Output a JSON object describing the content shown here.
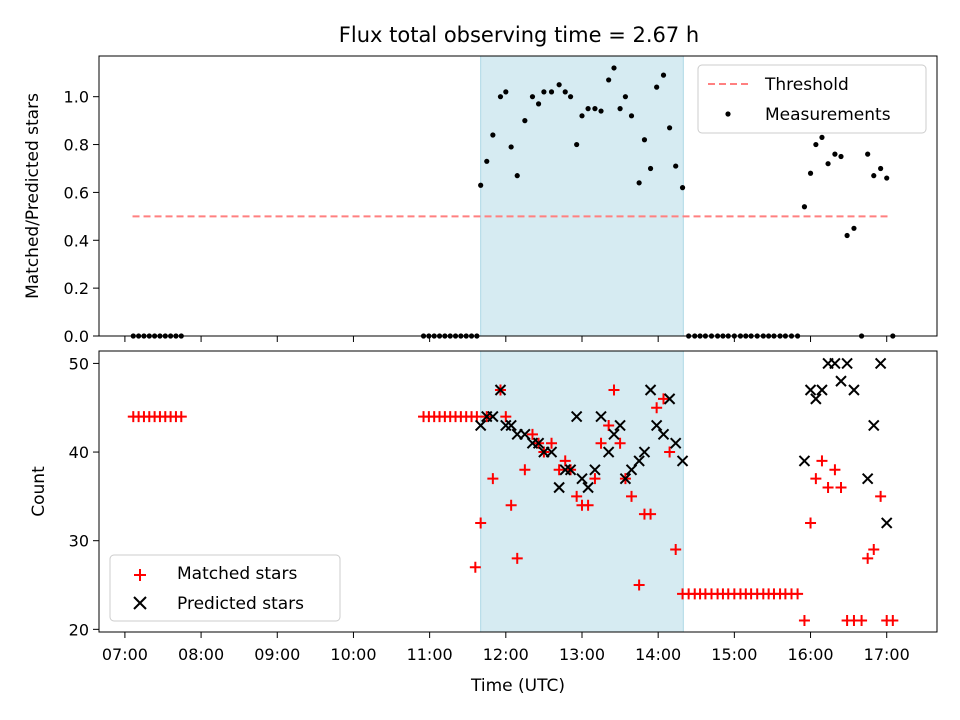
{
  "title": "Flux total observing time = 2.67 h",
  "colors": {
    "shade": "#add8e6",
    "threshold": "#ff8080",
    "matched": "#ff0000",
    "predicted": "#000000",
    "measurement": "#000000"
  },
  "chart_data": [
    {
      "type": "scatter",
      "panel": "top",
      "ylabel": "Matched/Predicted stars",
      "xlabel": "",
      "xlim": [
        6.66,
        17.66
      ],
      "ylim": [
        0.0,
        1.17
      ],
      "yticks": [
        0.0,
        0.2,
        0.4,
        0.6,
        0.8,
        1.0
      ],
      "ytick_labels": [
        "0.0",
        "0.2",
        "0.4",
        "0.6",
        "0.8",
        "1.0"
      ],
      "shaded_span": [
        11.67,
        14.33
      ],
      "legend": {
        "position": "top-right",
        "entries": [
          "Threshold",
          "Measurements"
        ]
      },
      "threshold": {
        "name": "Threshold",
        "y": 0.5,
        "x_range": [
          7.1,
          17.05
        ]
      },
      "series": [
        {
          "name": "Measurements",
          "points": [
            [
              7.11,
              0
            ],
            [
              7.18,
              0
            ],
            [
              7.25,
              0
            ],
            [
              7.32,
              0
            ],
            [
              7.39,
              0
            ],
            [
              7.46,
              0
            ],
            [
              7.53,
              0
            ],
            [
              7.6,
              0
            ],
            [
              7.67,
              0
            ],
            [
              7.74,
              0
            ],
            [
              10.92,
              0
            ],
            [
              10.99,
              0
            ],
            [
              11.06,
              0
            ],
            [
              11.13,
              0
            ],
            [
              11.2,
              0
            ],
            [
              11.27,
              0
            ],
            [
              11.34,
              0
            ],
            [
              11.41,
              0
            ],
            [
              11.48,
              0
            ],
            [
              11.55,
              0
            ],
            [
              11.62,
              0
            ],
            [
              11.67,
              0.63
            ],
            [
              11.75,
              0.73
            ],
            [
              11.83,
              0.84
            ],
            [
              11.93,
              1.0
            ],
            [
              12.0,
              1.02
            ],
            [
              12.07,
              0.79
            ],
            [
              12.15,
              0.67
            ],
            [
              12.25,
              0.9
            ],
            [
              12.35,
              1.0
            ],
            [
              12.43,
              0.97
            ],
            [
              12.5,
              1.02
            ],
            [
              12.6,
              1.02
            ],
            [
              12.7,
              1.05
            ],
            [
              12.78,
              1.02
            ],
            [
              12.85,
              1.0
            ],
            [
              12.93,
              0.8
            ],
            [
              13.0,
              0.92
            ],
            [
              13.08,
              0.95
            ],
            [
              13.17,
              0.95
            ],
            [
              13.25,
              0.94
            ],
            [
              13.35,
              1.07
            ],
            [
              13.42,
              1.12
            ],
            [
              13.5,
              0.95
            ],
            [
              13.57,
              1.0
            ],
            [
              13.65,
              0.92
            ],
            [
              13.75,
              0.64
            ],
            [
              13.82,
              0.82
            ],
            [
              13.9,
              0.7
            ],
            [
              13.98,
              1.04
            ],
            [
              14.07,
              1.09
            ],
            [
              14.15,
              0.87
            ],
            [
              14.23,
              0.71
            ],
            [
              14.32,
              0.62
            ],
            [
              14.4,
              0
            ],
            [
              14.48,
              0
            ],
            [
              14.55,
              0
            ],
            [
              14.62,
              0
            ],
            [
              14.7,
              0
            ],
            [
              14.78,
              0
            ],
            [
              14.85,
              0
            ],
            [
              14.92,
              0
            ],
            [
              15.0,
              0
            ],
            [
              15.08,
              0
            ],
            [
              15.15,
              0
            ],
            [
              15.22,
              0
            ],
            [
              15.3,
              0
            ],
            [
              15.38,
              0
            ],
            [
              15.45,
              0
            ],
            [
              15.52,
              0
            ],
            [
              15.6,
              0
            ],
            [
              15.67,
              0
            ],
            [
              15.75,
              0
            ],
            [
              15.83,
              0
            ],
            [
              15.92,
              0.54
            ],
            [
              16.0,
              0.68
            ],
            [
              16.07,
              0.8
            ],
            [
              16.15,
              0.83
            ],
            [
              16.23,
              0.72
            ],
            [
              16.32,
              0.76
            ],
            [
              16.4,
              0.75
            ],
            [
              16.48,
              0.42
            ],
            [
              16.57,
              0.45
            ],
            [
              16.67,
              0
            ],
            [
              16.75,
              0.76
            ],
            [
              16.83,
              0.67
            ],
            [
              16.92,
              0.7
            ],
            [
              17.0,
              0.66
            ],
            [
              17.08,
              0
            ]
          ]
        }
      ]
    },
    {
      "type": "scatter",
      "panel": "bottom",
      "ylabel": "Count",
      "xlabel": "Time (UTC)",
      "xlim": [
        6.66,
        17.66
      ],
      "ylim": [
        19.7,
        51.4
      ],
      "yticks": [
        20,
        30,
        40,
        50
      ],
      "ytick_labels": [
        "20",
        "30",
        "40",
        "50"
      ],
      "xticks": [
        7,
        8,
        9,
        10,
        11,
        12,
        13,
        14,
        15,
        16,
        17
      ],
      "xtick_labels": [
        "07:00",
        "08:00",
        "09:00",
        "10:00",
        "11:00",
        "12:00",
        "13:00",
        "14:00",
        "15:00",
        "16:00",
        "17:00"
      ],
      "shaded_span": [
        11.67,
        14.33
      ],
      "legend": {
        "position": "bottom-left",
        "entries": [
          "Matched stars",
          "Predicted stars"
        ]
      },
      "series": [
        {
          "name": "Matched stars",
          "marker": "plus",
          "points": [
            [
              7.11,
              44
            ],
            [
              7.18,
              44
            ],
            [
              7.25,
              44
            ],
            [
              7.32,
              44
            ],
            [
              7.39,
              44
            ],
            [
              7.46,
              44
            ],
            [
              7.53,
              44
            ],
            [
              7.6,
              44
            ],
            [
              7.67,
              44
            ],
            [
              7.74,
              44
            ],
            [
              10.92,
              44
            ],
            [
              10.99,
              44
            ],
            [
              11.06,
              44
            ],
            [
              11.13,
              44
            ],
            [
              11.2,
              44
            ],
            [
              11.27,
              44
            ],
            [
              11.34,
              44
            ],
            [
              11.41,
              44
            ],
            [
              11.48,
              44
            ],
            [
              11.55,
              44
            ],
            [
              11.62,
              44
            ],
            [
              11.6,
              27
            ],
            [
              11.67,
              32
            ],
            [
              11.75,
              44
            ],
            [
              11.83,
              37
            ],
            [
              11.93,
              47
            ],
            [
              12.0,
              44
            ],
            [
              12.07,
              34
            ],
            [
              12.15,
              28
            ],
            [
              12.25,
              38
            ],
            [
              12.35,
              42
            ],
            [
              12.43,
              41
            ],
            [
              12.5,
              40
            ],
            [
              12.6,
              41
            ],
            [
              12.7,
              38
            ],
            [
              12.78,
              39
            ],
            [
              12.85,
              38
            ],
            [
              12.93,
              35
            ],
            [
              13.0,
              34
            ],
            [
              13.08,
              34
            ],
            [
              13.17,
              37
            ],
            [
              13.25,
              41
            ],
            [
              13.35,
              43
            ],
            [
              13.42,
              47
            ],
            [
              13.5,
              41
            ],
            [
              13.57,
              37
            ],
            [
              13.65,
              35
            ],
            [
              13.75,
              25
            ],
            [
              13.82,
              33
            ],
            [
              13.9,
              33
            ],
            [
              13.98,
              45
            ],
            [
              14.07,
              46
            ],
            [
              14.15,
              40
            ],
            [
              14.23,
              29
            ],
            [
              14.32,
              24
            ],
            [
              14.4,
              24
            ],
            [
              14.48,
              24
            ],
            [
              14.55,
              24
            ],
            [
              14.62,
              24
            ],
            [
              14.7,
              24
            ],
            [
              14.78,
              24
            ],
            [
              14.85,
              24
            ],
            [
              14.92,
              24
            ],
            [
              15.0,
              24
            ],
            [
              15.08,
              24
            ],
            [
              15.15,
              24
            ],
            [
              15.22,
              24
            ],
            [
              15.3,
              24
            ],
            [
              15.38,
              24
            ],
            [
              15.45,
              24
            ],
            [
              15.52,
              24
            ],
            [
              15.6,
              24
            ],
            [
              15.67,
              24
            ],
            [
              15.75,
              24
            ],
            [
              15.83,
              24
            ],
            [
              15.92,
              21
            ],
            [
              16.0,
              32
            ],
            [
              16.07,
              37
            ],
            [
              16.15,
              39
            ],
            [
              16.23,
              36
            ],
            [
              16.32,
              38
            ],
            [
              16.4,
              36
            ],
            [
              16.48,
              21
            ],
            [
              16.57,
              21
            ],
            [
              16.67,
              21
            ],
            [
              16.75,
              28
            ],
            [
              16.83,
              29
            ],
            [
              16.92,
              35
            ],
            [
              17.0,
              21
            ],
            [
              17.08,
              21
            ]
          ]
        },
        {
          "name": "Predicted stars",
          "marker": "x",
          "points": [
            [
              11.67,
              43
            ],
            [
              11.75,
              44
            ],
            [
              11.83,
              44
            ],
            [
              11.93,
              47
            ],
            [
              12.0,
              43
            ],
            [
              12.07,
              43
            ],
            [
              12.15,
              42
            ],
            [
              12.25,
              42
            ],
            [
              12.35,
              41
            ],
            [
              12.43,
              41
            ],
            [
              12.5,
              40
            ],
            [
              12.6,
              40
            ],
            [
              12.7,
              36
            ],
            [
              12.78,
              38
            ],
            [
              12.85,
              38
            ],
            [
              12.93,
              44
            ],
            [
              13.0,
              37
            ],
            [
              13.08,
              36
            ],
            [
              13.17,
              38
            ],
            [
              13.25,
              44
            ],
            [
              13.35,
              40
            ],
            [
              13.42,
              42
            ],
            [
              13.5,
              43
            ],
            [
              13.57,
              37
            ],
            [
              13.65,
              38
            ],
            [
              13.75,
              39
            ],
            [
              13.82,
              40
            ],
            [
              13.9,
              47
            ],
            [
              13.98,
              43
            ],
            [
              14.07,
              42
            ],
            [
              14.15,
              46
            ],
            [
              14.23,
              41
            ],
            [
              14.32,
              39
            ],
            [
              15.92,
              39
            ],
            [
              16.0,
              47
            ],
            [
              16.07,
              46
            ],
            [
              16.15,
              47
            ],
            [
              16.23,
              50
            ],
            [
              16.32,
              50
            ],
            [
              16.4,
              48
            ],
            [
              16.48,
              50
            ],
            [
              16.57,
              47
            ],
            [
              16.75,
              37
            ],
            [
              16.83,
              43
            ],
            [
              16.92,
              50
            ],
            [
              17.0,
              32
            ]
          ]
        }
      ]
    }
  ]
}
